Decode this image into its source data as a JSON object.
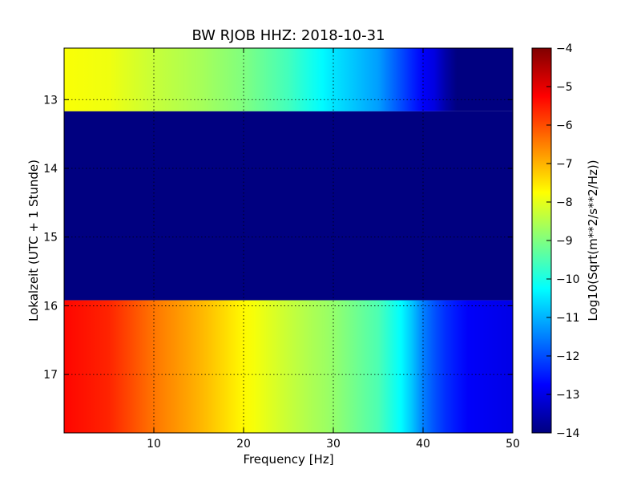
{
  "chart_data": {
    "type": "heatmap",
    "title": "BW RJOB HHZ: 2018-10-31",
    "xlabel": "Frequency [Hz]",
    "ylabel": "Lokalzeit (UTC + 1 Stunde)",
    "xlim": [
      0,
      50
    ],
    "ylim": [
      12.25,
      17.85
    ],
    "y_inverted": true,
    "x_ticks": [
      10,
      20,
      30,
      40,
      50
    ],
    "y_ticks": [
      13,
      14,
      15,
      16,
      17
    ],
    "grid": true,
    "colormap": "jet",
    "colorbar": {
      "label": "Log10(Sqrt(m**2/s**2/Hz))",
      "min": -14,
      "max": -4,
      "ticks": [
        -4,
        -5,
        -6,
        -7,
        -8,
        -9,
        -10,
        -11,
        -12,
        -13,
        -14
      ]
    },
    "segments": [
      {
        "time_range": [
          12.25,
          13.17
        ],
        "profile_freq": [
          0,
          5,
          10,
          15,
          20,
          25,
          30,
          35,
          40,
          42,
          43,
          46,
          50
        ],
        "profile_value": [
          -7.8,
          -7.9,
          -8.3,
          -8.6,
          -9.0,
          -9.6,
          -10.5,
          -11.2,
          -12.8,
          -13.2,
          -14,
          -14,
          -14
        ]
      },
      {
        "time_range": [
          13.17,
          15.92
        ],
        "profile_freq": [
          0,
          50
        ],
        "profile_value": [
          -14,
          -14
        ]
      },
      {
        "time_range": [
          15.92,
          17.85
        ],
        "profile_freq": [
          0,
          5,
          10,
          15,
          20,
          25,
          30,
          35,
          38,
          40,
          42,
          45,
          50
        ],
        "profile_value": [
          -5.3,
          -5.6,
          -6.4,
          -7.0,
          -7.7,
          -8.3,
          -8.8,
          -9.5,
          -10.4,
          -11.5,
          -12.2,
          -12.8,
          -13.0
        ]
      }
    ]
  },
  "colors": {
    "background": "#ffffff",
    "axes_edge": "#000000",
    "grid": "#000000"
  }
}
